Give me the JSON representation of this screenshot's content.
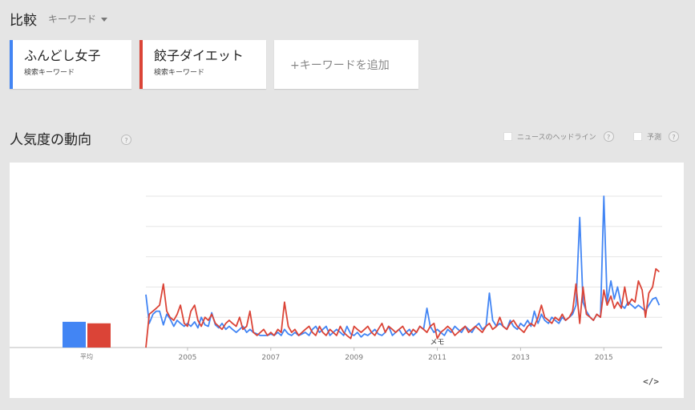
{
  "header": {
    "title": "比較",
    "mode_label": "キーワード"
  },
  "terms": [
    {
      "label": "ふんどし女子",
      "sublabel": "検索キーワード",
      "color": "#4285f4"
    },
    {
      "label": "餃子ダイエット",
      "sublabel": "検索キーワード",
      "color": "#db4437"
    }
  ],
  "add_term_label": "+キーワードを追加",
  "section": {
    "title": "人気度の動向",
    "help": "?"
  },
  "options": {
    "news_label": "ニュースのヘッドライン",
    "forecast_label": "予測",
    "help": "?"
  },
  "chart_data": {
    "type": "line",
    "average_label": "平均",
    "average_values": [
      17,
      16
    ],
    "x_ticks": [
      "2005",
      "2007",
      "2009",
      "2011",
      "2013",
      "2015"
    ],
    "x_start": 2004.0,
    "x_end": 2016.4,
    "ylim": [
      0,
      100
    ],
    "annotation": {
      "label": "メモ",
      "x": 2011.0
    },
    "series": [
      {
        "color": "#4285f4",
        "points": [
          [
            2004.0,
            35
          ],
          [
            2004.08,
            16
          ],
          [
            2004.17,
            22
          ],
          [
            2004.25,
            24
          ],
          [
            2004.33,
            24
          ],
          [
            2004.42,
            15
          ],
          [
            2004.5,
            22
          ],
          [
            2004.58,
            19
          ],
          [
            2004.67,
            14
          ],
          [
            2004.75,
            18
          ],
          [
            2004.83,
            16
          ],
          [
            2004.92,
            14
          ],
          [
            2005.0,
            16
          ],
          [
            2005.08,
            14
          ],
          [
            2005.17,
            17
          ],
          [
            2005.25,
            13
          ],
          [
            2005.33,
            20
          ],
          [
            2005.42,
            15
          ],
          [
            2005.5,
            14
          ],
          [
            2005.58,
            23
          ],
          [
            2005.67,
            15
          ],
          [
            2005.75,
            13
          ],
          [
            2005.83,
            16
          ],
          [
            2005.92,
            12
          ],
          [
            2006.0,
            14
          ],
          [
            2006.08,
            12
          ],
          [
            2006.17,
            10
          ],
          [
            2006.25,
            12
          ],
          [
            2006.33,
            14
          ],
          [
            2006.42,
            10
          ],
          [
            2006.5,
            12
          ],
          [
            2006.58,
            10
          ],
          [
            2006.67,
            9
          ],
          [
            2006.75,
            8
          ],
          [
            2006.83,
            8
          ],
          [
            2006.92,
            8
          ],
          [
            2007.0,
            9
          ],
          [
            2007.08,
            8
          ],
          [
            2007.17,
            10
          ],
          [
            2007.25,
            8
          ],
          [
            2007.33,
            12
          ],
          [
            2007.42,
            9
          ],
          [
            2007.5,
            8
          ],
          [
            2007.58,
            10
          ],
          [
            2007.67,
            8
          ],
          [
            2007.75,
            9
          ],
          [
            2007.83,
            10
          ],
          [
            2007.92,
            8
          ],
          [
            2008.0,
            12
          ],
          [
            2008.08,
            14
          ],
          [
            2008.17,
            10
          ],
          [
            2008.25,
            12
          ],
          [
            2008.33,
            14
          ],
          [
            2008.42,
            8
          ],
          [
            2008.5,
            10
          ],
          [
            2008.58,
            12
          ],
          [
            2008.67,
            10
          ],
          [
            2008.75,
            8
          ],
          [
            2008.83,
            14
          ],
          [
            2008.92,
            9
          ],
          [
            2009.0,
            8
          ],
          [
            2009.08,
            10
          ],
          [
            2009.17,
            7
          ],
          [
            2009.25,
            9
          ],
          [
            2009.33,
            8
          ],
          [
            2009.42,
            10
          ],
          [
            2009.5,
            12
          ],
          [
            2009.58,
            9
          ],
          [
            2009.67,
            8
          ],
          [
            2009.75,
            10
          ],
          [
            2009.83,
            14
          ],
          [
            2009.92,
            8
          ],
          [
            2010.0,
            10
          ],
          [
            2010.08,
            12
          ],
          [
            2010.17,
            8
          ],
          [
            2010.25,
            10
          ],
          [
            2010.33,
            12
          ],
          [
            2010.42,
            8
          ],
          [
            2010.5,
            10
          ],
          [
            2010.58,
            14
          ],
          [
            2010.67,
            12
          ],
          [
            2010.75,
            26
          ],
          [
            2010.83,
            14
          ],
          [
            2010.92,
            10
          ],
          [
            2011.0,
            12
          ],
          [
            2011.08,
            10
          ],
          [
            2011.17,
            8
          ],
          [
            2011.25,
            12
          ],
          [
            2011.33,
            10
          ],
          [
            2011.42,
            14
          ],
          [
            2011.5,
            12
          ],
          [
            2011.58,
            10
          ],
          [
            2011.67,
            14
          ],
          [
            2011.75,
            12
          ],
          [
            2011.83,
            10
          ],
          [
            2011.92,
            14
          ],
          [
            2012.0,
            16
          ],
          [
            2012.08,
            12
          ],
          [
            2012.17,
            14
          ],
          [
            2012.25,
            36
          ],
          [
            2012.33,
            18
          ],
          [
            2012.42,
            14
          ],
          [
            2012.5,
            16
          ],
          [
            2012.58,
            14
          ],
          [
            2012.67,
            12
          ],
          [
            2012.75,
            18
          ],
          [
            2012.83,
            14
          ],
          [
            2012.92,
            12
          ],
          [
            2013.0,
            16
          ],
          [
            2013.08,
            14
          ],
          [
            2013.17,
            18
          ],
          [
            2013.25,
            14
          ],
          [
            2013.33,
            24
          ],
          [
            2013.42,
            16
          ],
          [
            2013.5,
            22
          ],
          [
            2013.58,
            18
          ],
          [
            2013.67,
            16
          ],
          [
            2013.75,
            20
          ],
          [
            2013.83,
            18
          ],
          [
            2013.92,
            16
          ],
          [
            2014.0,
            20
          ],
          [
            2014.08,
            18
          ],
          [
            2014.17,
            20
          ],
          [
            2014.25,
            22
          ],
          [
            2014.33,
            28
          ],
          [
            2014.42,
            86
          ],
          [
            2014.5,
            30
          ],
          [
            2014.58,
            24
          ],
          [
            2014.67,
            20
          ],
          [
            2014.75,
            18
          ],
          [
            2014.83,
            22
          ],
          [
            2014.92,
            20
          ],
          [
            2015.0,
            100
          ],
          [
            2015.08,
            30
          ],
          [
            2015.17,
            44
          ],
          [
            2015.25,
            32
          ],
          [
            2015.33,
            40
          ],
          [
            2015.42,
            28
          ],
          [
            2015.5,
            26
          ],
          [
            2015.58,
            30
          ],
          [
            2015.67,
            28
          ],
          [
            2015.75,
            26
          ],
          [
            2015.83,
            28
          ],
          [
            2015.92,
            26
          ],
          [
            2016.0,
            24
          ],
          [
            2016.08,
            28
          ],
          [
            2016.17,
            32
          ],
          [
            2016.25,
            33
          ],
          [
            2016.33,
            28
          ]
        ]
      },
      {
        "color": "#db4437",
        "points": [
          [
            2004.0,
            0
          ],
          [
            2004.08,
            22
          ],
          [
            2004.17,
            24
          ],
          [
            2004.25,
            26
          ],
          [
            2004.33,
            28
          ],
          [
            2004.42,
            42
          ],
          [
            2004.5,
            24
          ],
          [
            2004.58,
            20
          ],
          [
            2004.67,
            18
          ],
          [
            2004.75,
            22
          ],
          [
            2004.83,
            28
          ],
          [
            2004.92,
            16
          ],
          [
            2005.0,
            14
          ],
          [
            2005.08,
            24
          ],
          [
            2005.17,
            28
          ],
          [
            2005.25,
            18
          ],
          [
            2005.33,
            14
          ],
          [
            2005.42,
            20
          ],
          [
            2005.5,
            18
          ],
          [
            2005.58,
            22
          ],
          [
            2005.67,
            16
          ],
          [
            2005.75,
            14
          ],
          [
            2005.83,
            12
          ],
          [
            2005.92,
            16
          ],
          [
            2006.0,
            18
          ],
          [
            2006.08,
            16
          ],
          [
            2006.17,
            14
          ],
          [
            2006.25,
            20
          ],
          [
            2006.33,
            12
          ],
          [
            2006.42,
            14
          ],
          [
            2006.5,
            24
          ],
          [
            2006.58,
            10
          ],
          [
            2006.67,
            8
          ],
          [
            2006.75,
            10
          ],
          [
            2006.83,
            12
          ],
          [
            2006.92,
            8
          ],
          [
            2007.0,
            10
          ],
          [
            2007.08,
            8
          ],
          [
            2007.17,
            12
          ],
          [
            2007.25,
            10
          ],
          [
            2007.33,
            30
          ],
          [
            2007.42,
            14
          ],
          [
            2007.5,
            10
          ],
          [
            2007.58,
            12
          ],
          [
            2007.67,
            8
          ],
          [
            2007.75,
            10
          ],
          [
            2007.83,
            12
          ],
          [
            2007.92,
            14
          ],
          [
            2008.0,
            10
          ],
          [
            2008.08,
            8
          ],
          [
            2008.17,
            14
          ],
          [
            2008.25,
            10
          ],
          [
            2008.33,
            8
          ],
          [
            2008.42,
            12
          ],
          [
            2008.5,
            10
          ],
          [
            2008.58,
            8
          ],
          [
            2008.67,
            14
          ],
          [
            2008.75,
            10
          ],
          [
            2008.83,
            8
          ],
          [
            2008.92,
            6
          ],
          [
            2009.0,
            14
          ],
          [
            2009.08,
            12
          ],
          [
            2009.17,
            10
          ],
          [
            2009.25,
            12
          ],
          [
            2009.33,
            14
          ],
          [
            2009.42,
            10
          ],
          [
            2009.5,
            8
          ],
          [
            2009.58,
            12
          ],
          [
            2009.67,
            16
          ],
          [
            2009.75,
            10
          ],
          [
            2009.83,
            14
          ],
          [
            2009.92,
            12
          ],
          [
            2010.0,
            10
          ],
          [
            2010.08,
            12
          ],
          [
            2010.17,
            14
          ],
          [
            2010.25,
            10
          ],
          [
            2010.33,
            8
          ],
          [
            2010.42,
            12
          ],
          [
            2010.5,
            10
          ],
          [
            2010.58,
            14
          ],
          [
            2010.67,
            12
          ],
          [
            2010.75,
            10
          ],
          [
            2010.83,
            14
          ],
          [
            2010.92,
            16
          ],
          [
            2011.0,
            6
          ],
          [
            2011.08,
            10
          ],
          [
            2011.17,
            12
          ],
          [
            2011.25,
            14
          ],
          [
            2011.33,
            12
          ],
          [
            2011.42,
            8
          ],
          [
            2011.5,
            10
          ],
          [
            2011.58,
            12
          ],
          [
            2011.67,
            14
          ],
          [
            2011.75,
            10
          ],
          [
            2011.83,
            12
          ],
          [
            2011.92,
            14
          ],
          [
            2012.0,
            12
          ],
          [
            2012.08,
            10
          ],
          [
            2012.17,
            14
          ],
          [
            2012.25,
            16
          ],
          [
            2012.33,
            12
          ],
          [
            2012.42,
            14
          ],
          [
            2012.5,
            20
          ],
          [
            2012.58,
            14
          ],
          [
            2012.67,
            12
          ],
          [
            2012.75,
            16
          ],
          [
            2012.83,
            18
          ],
          [
            2012.92,
            14
          ],
          [
            2013.0,
            12
          ],
          [
            2013.08,
            10
          ],
          [
            2013.17,
            14
          ],
          [
            2013.25,
            16
          ],
          [
            2013.33,
            14
          ],
          [
            2013.42,
            20
          ],
          [
            2013.5,
            28
          ],
          [
            2013.58,
            20
          ],
          [
            2013.67,
            18
          ],
          [
            2013.75,
            16
          ],
          [
            2013.83,
            20
          ],
          [
            2013.92,
            18
          ],
          [
            2014.0,
            22
          ],
          [
            2014.08,
            18
          ],
          [
            2014.17,
            20
          ],
          [
            2014.25,
            24
          ],
          [
            2014.33,
            42
          ],
          [
            2014.42,
            16
          ],
          [
            2014.5,
            40
          ],
          [
            2014.58,
            22
          ],
          [
            2014.67,
            20
          ],
          [
            2014.75,
            18
          ],
          [
            2014.83,
            22
          ],
          [
            2014.92,
            20
          ],
          [
            2015.0,
            38
          ],
          [
            2015.08,
            28
          ],
          [
            2015.17,
            34
          ],
          [
            2015.25,
            26
          ],
          [
            2015.33,
            30
          ],
          [
            2015.42,
            26
          ],
          [
            2015.5,
            40
          ],
          [
            2015.58,
            28
          ],
          [
            2015.67,
            32
          ],
          [
            2015.75,
            30
          ],
          [
            2015.83,
            44
          ],
          [
            2015.92,
            38
          ],
          [
            2016.0,
            20
          ],
          [
            2016.08,
            36
          ],
          [
            2016.17,
            40
          ],
          [
            2016.25,
            52
          ],
          [
            2016.33,
            50
          ]
        ]
      }
    ]
  }
}
